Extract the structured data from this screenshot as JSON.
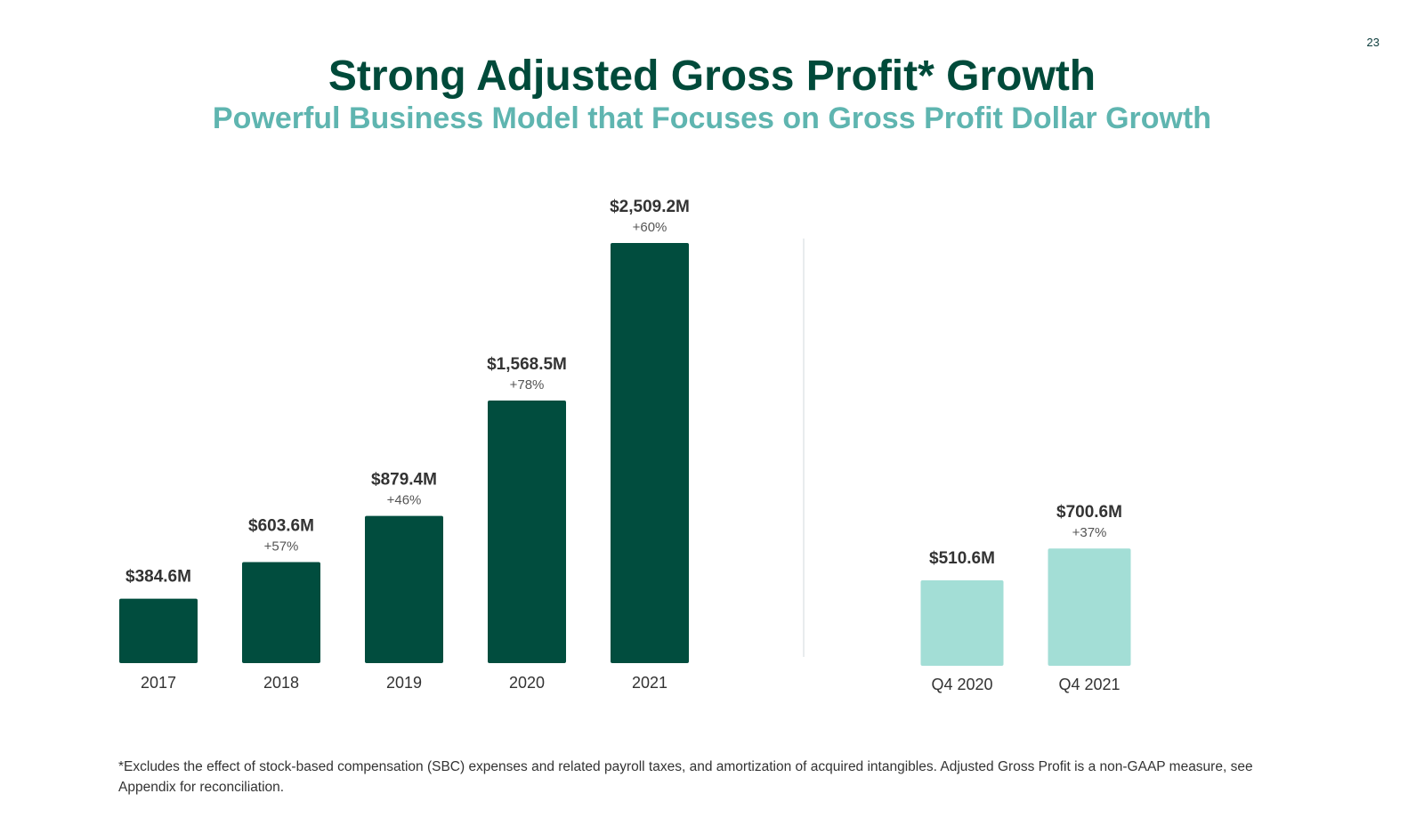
{
  "page": {
    "number": "23",
    "title": "Strong Adjusted Gross Profit* Growth",
    "subtitle": "Powerful Business Model that Focuses on Gross Profit Dollar Growth",
    "footnote": "*Excludes the effect of stock-based compensation (SBC) expenses and related payroll taxes, and amortization of acquired intangibles. Adjusted Gross Profit is a non-GAAP measure, see Appendix for reconciliation."
  },
  "colors": {
    "annual_bar": "#014d3e",
    "quarterly_bar": "#a3ded6",
    "divider": "#e8ecee",
    "value_label": "#333333",
    "growth_label": "#555555",
    "axis_label": "#333333"
  },
  "chart_data": [
    {
      "type": "bar",
      "title": "Annual Adjusted Gross Profit",
      "xlabel": "",
      "ylabel": "",
      "unit": "$M",
      "categories": [
        "2017",
        "2018",
        "2019",
        "2020",
        "2021"
      ],
      "values": [
        384.6,
        603.6,
        879.4,
        1568.5,
        2509.2
      ],
      "value_labels": [
        "$384.6M",
        "$603.6M",
        "$879.4M",
        "$1,568.5M",
        "$2,509.2M"
      ],
      "growth_labels": [
        "",
        "+57%",
        "+46%",
        "+78%",
        "+60%"
      ],
      "ylim": [
        0,
        2509.2
      ],
      "grid": false,
      "legend": "none"
    },
    {
      "type": "bar",
      "title": "Quarterly Adjusted Gross Profit",
      "xlabel": "",
      "ylabel": "",
      "unit": "$M",
      "categories": [
        "Q4 2020",
        "Q4 2021"
      ],
      "values": [
        510.6,
        700.6
      ],
      "value_labels": [
        "$510.6M",
        "$700.6M"
      ],
      "growth_labels": [
        "",
        "+37%"
      ],
      "ylim": [
        0,
        1500
      ],
      "grid": false,
      "legend": "none"
    }
  ]
}
